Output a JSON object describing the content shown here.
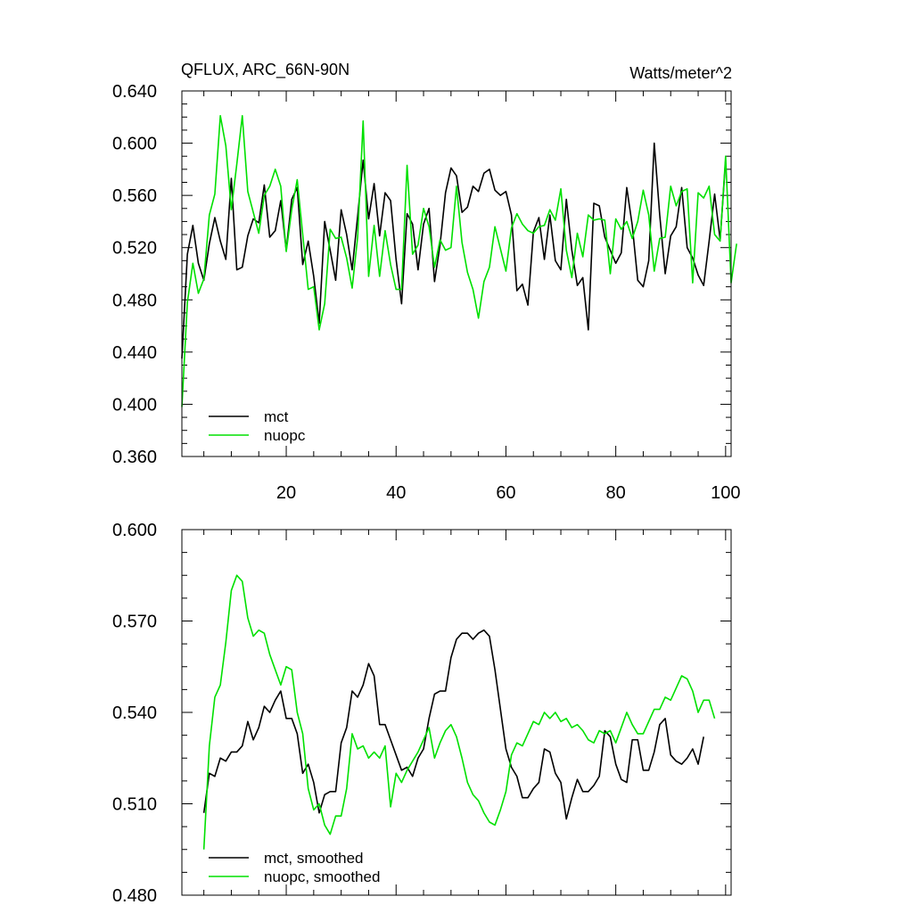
{
  "colors": {
    "mct": "#000000",
    "nuopc": "#00e000"
  },
  "chart_data": [
    {
      "type": "line",
      "title": "QFLUX, ARC_66N-90N",
      "units": "Watts/meter^2",
      "xlim": [
        1,
        101
      ],
      "ylim": [
        0.36,
        0.64
      ],
      "xticks": [
        20,
        40,
        60,
        80,
        100
      ],
      "xtick_labels": [
        "20",
        "40",
        "60",
        "80",
        "100"
      ],
      "yticks": [
        0.36,
        0.4,
        0.44,
        0.48,
        0.52,
        0.56,
        0.6,
        0.64
      ],
      "ytick_labels": [
        "0.360",
        "0.400",
        "0.440",
        "0.480",
        "0.520",
        "0.560",
        "0.600",
        "0.640"
      ],
      "legend": {
        "placement": "bottom-left",
        "entries": [
          "mct",
          "nuopc"
        ]
      },
      "x_start": 1,
      "series": [
        {
          "name": "mct",
          "color": "#000000",
          "values": [
            0.435,
            0.515,
            0.537,
            0.508,
            0.495,
            0.523,
            0.543,
            0.525,
            0.511,
            0.573,
            0.503,
            0.505,
            0.529,
            0.542,
            0.539,
            0.568,
            0.528,
            0.533,
            0.556,
            0.518,
            0.557,
            0.566,
            0.507,
            0.525,
            0.498,
            0.462,
            0.54,
            0.518,
            0.495,
            0.549,
            0.53,
            0.503,
            0.544,
            0.587,
            0.542,
            0.569,
            0.529,
            0.562,
            0.556,
            0.511,
            0.477,
            0.546,
            0.538,
            0.503,
            0.538,
            0.55,
            0.494,
            0.522,
            0.562,
            0.581,
            0.575,
            0.547,
            0.551,
            0.567,
            0.563,
            0.577,
            0.58,
            0.564,
            0.56,
            0.563,
            0.545,
            0.487,
            0.492,
            0.476,
            0.532,
            0.543,
            0.511,
            0.545,
            0.51,
            0.503,
            0.557,
            0.518,
            0.491,
            0.497,
            0.457,
            0.554,
            0.552,
            0.528,
            0.518,
            0.508,
            0.516,
            0.566,
            0.537,
            0.495,
            0.49,
            0.51,
            0.6,
            0.545,
            0.5,
            0.529,
            0.536,
            0.566,
            0.52,
            0.512,
            0.499,
            0.491,
            0.525,
            0.561,
            0.526,
            0.587
          ]
        },
        {
          "name": "nuopc",
          "color": "#00e000",
          "values": [
            0.398,
            0.478,
            0.508,
            0.485,
            0.496,
            0.545,
            0.561,
            0.621,
            0.598,
            0.549,
            0.584,
            0.621,
            0.563,
            0.547,
            0.531,
            0.56,
            0.567,
            0.58,
            0.567,
            0.517,
            0.549,
            0.572,
            0.53,
            0.488,
            0.49,
            0.457,
            0.477,
            0.534,
            0.527,
            0.528,
            0.512,
            0.489,
            0.528,
            0.617,
            0.498,
            0.537,
            0.498,
            0.533,
            0.507,
            0.488,
            0.488,
            0.583,
            0.515,
            0.522,
            0.55,
            0.536,
            0.505,
            0.526,
            0.518,
            0.52,
            0.567,
            0.524,
            0.501,
            0.488,
            0.466,
            0.494,
            0.505,
            0.536,
            0.519,
            0.502,
            0.535,
            0.546,
            0.538,
            0.533,
            0.531,
            0.536,
            0.537,
            0.549,
            0.541,
            0.565,
            0.518,
            0.497,
            0.531,
            0.513,
            0.545,
            0.541,
            0.542,
            0.541,
            0.5,
            0.542,
            0.534,
            0.54,
            0.527,
            0.54,
            0.564,
            0.545,
            0.502,
            0.527,
            0.528,
            0.567,
            0.552,
            0.563,
            0.565,
            0.493,
            0.562,
            0.558,
            0.567,
            0.53,
            0.525,
            0.59,
            0.493,
            0.523
          ]
        }
      ]
    },
    {
      "type": "line",
      "xlim": [
        1,
        101
      ],
      "ylim": [
        0.48,
        0.6
      ],
      "xticks": [
        20,
        40,
        60,
        80,
        100
      ],
      "yticks": [
        0.48,
        0.51,
        0.54,
        0.57,
        0.6
      ],
      "ytick_labels": [
        "0.480",
        "0.510",
        "0.540",
        "0.570",
        "0.600"
      ],
      "legend": {
        "placement": "bottom-left",
        "entries": [
          "mct, smoothed",
          "nuopc, smoothed"
        ]
      },
      "x_start": 5,
      "series": [
        {
          "name": "mct, smoothed",
          "color": "#000000",
          "values": [
            0.507,
            0.52,
            0.519,
            0.525,
            0.524,
            0.527,
            0.527,
            0.529,
            0.537,
            0.531,
            0.535,
            0.542,
            0.54,
            0.544,
            0.547,
            0.538,
            0.538,
            0.533,
            0.52,
            0.523,
            0.517,
            0.507,
            0.513,
            0.514,
            0.514,
            0.53,
            0.535,
            0.547,
            0.545,
            0.549,
            0.556,
            0.552,
            0.536,
            0.536,
            0.531,
            0.526,
            0.521,
            0.522,
            0.519,
            0.525,
            0.528,
            0.538,
            0.546,
            0.547,
            0.547,
            0.558,
            0.564,
            0.566,
            0.566,
            0.564,
            0.566,
            0.567,
            0.565,
            0.554,
            0.541,
            0.528,
            0.522,
            0.519,
            0.512,
            0.512,
            0.515,
            0.517,
            0.528,
            0.527,
            0.52,
            0.517,
            0.505,
            0.512,
            0.518,
            0.514,
            0.514,
            0.516,
            0.519,
            0.534,
            0.532,
            0.523,
            0.518,
            0.517,
            0.531,
            0.531,
            0.521,
            0.521,
            0.527,
            0.536,
            0.538,
            0.526,
            0.524,
            0.523,
            0.525,
            0.528,
            0.523,
            0.532
          ]
        },
        {
          "name": "nuopc, smoothed",
          "color": "#00e000",
          "values": [
            0.495,
            0.529,
            0.545,
            0.549,
            0.563,
            0.58,
            0.585,
            0.583,
            0.571,
            0.565,
            0.567,
            0.566,
            0.559,
            0.554,
            0.549,
            0.555,
            0.554,
            0.54,
            0.533,
            0.515,
            0.508,
            0.51,
            0.503,
            0.5,
            0.506,
            0.506,
            0.515,
            0.533,
            0.528,
            0.529,
            0.525,
            0.527,
            0.525,
            0.529,
            0.509,
            0.52,
            0.517,
            0.521,
            0.524,
            0.527,
            0.531,
            0.535,
            0.525,
            0.53,
            0.534,
            0.536,
            0.532,
            0.525,
            0.517,
            0.513,
            0.511,
            0.507,
            0.504,
            0.503,
            0.508,
            0.514,
            0.526,
            0.53,
            0.529,
            0.533,
            0.537,
            0.536,
            0.54,
            0.538,
            0.54,
            0.537,
            0.538,
            0.535,
            0.536,
            0.534,
            0.531,
            0.53,
            0.534,
            0.533,
            0.534,
            0.53,
            0.535,
            0.54,
            0.536,
            0.533,
            0.533,
            0.537,
            0.541,
            0.541,
            0.545,
            0.544,
            0.548,
            0.552,
            0.551,
            0.547,
            0.54,
            0.544,
            0.544,
            0.538
          ]
        }
      ]
    }
  ]
}
